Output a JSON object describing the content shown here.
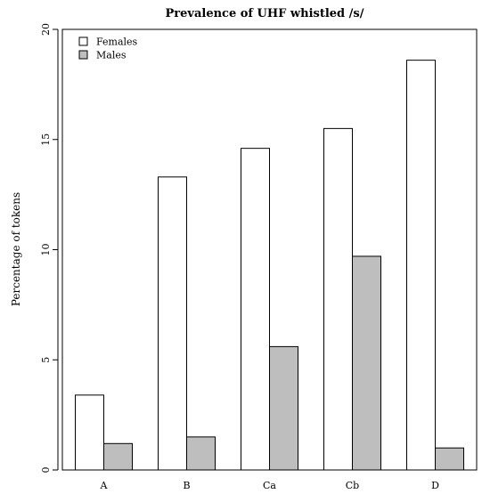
{
  "chart_data": {
    "type": "bar",
    "title": "Prevalence of UHF whistled /s/",
    "xlabel": "",
    "ylabel": "Percentage of tokens",
    "categories": [
      "A",
      "B",
      "Ca",
      "Cb",
      "D"
    ],
    "series": [
      {
        "name": "Females",
        "values": [
          3.4,
          13.3,
          14.6,
          15.5,
          18.6
        ],
        "color": "#ffffff"
      },
      {
        "name": "Males",
        "values": [
          1.2,
          1.5,
          5.6,
          9.7,
          1.0
        ],
        "color": "#bebebe"
      }
    ],
    "ylim": [
      0,
      20
    ],
    "yticks": [
      0,
      5,
      10,
      15,
      20
    ],
    "grid": false,
    "legend_position": "top-left"
  }
}
